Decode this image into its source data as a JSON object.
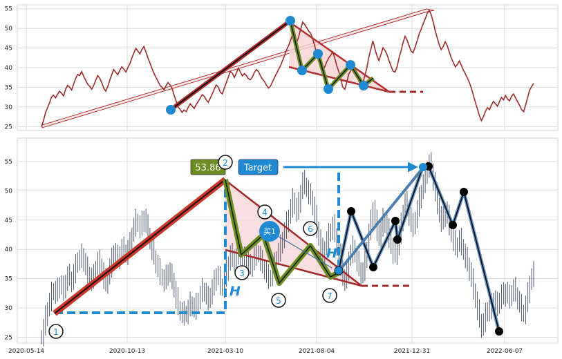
{
  "chart_data": [
    {
      "type": "line",
      "panel": "top",
      "title": "",
      "ylim": [
        24,
        56
      ],
      "yticks": [
        25,
        30,
        35,
        40,
        45,
        50,
        55
      ],
      "grid": true,
      "colors": {
        "price": "#9b2a2a",
        "marker": "#1f8ad2",
        "trend": "#b03030",
        "wave": "#6b8e23",
        "arrow": "#b03030"
      },
      "series": [
        {
          "values": [
            25.0,
            26.5,
            28.5,
            29.8,
            31.0,
            32.5,
            33.0,
            32.3,
            33.2,
            34.0,
            33.5,
            32.8,
            34.5,
            35.5,
            35.0,
            34.3,
            35.8,
            37.2,
            38.3,
            38.0,
            39.0,
            37.8,
            36.8,
            35.8,
            35.3,
            34.5,
            35.5,
            36.8,
            38.0,
            37.3,
            36.2,
            34.8,
            34.0,
            35.2,
            36.8,
            38.3,
            39.5,
            38.8,
            38.2,
            39.3,
            40.2,
            39.6,
            38.9,
            40.0,
            41.0,
            42.5,
            43.8,
            44.9,
            44.2,
            43.5,
            44.6,
            45.4,
            44.0,
            42.5,
            41.2,
            39.8,
            38.6,
            37.5,
            36.5,
            35.5,
            35.0,
            34.4,
            35.4,
            36.2,
            35.6,
            34.8,
            33.0,
            31.5,
            30.0,
            29.4,
            28.6,
            29.2,
            28.8,
            29.8,
            30.8,
            30.2,
            29.6,
            30.6,
            31.4,
            32.2,
            33.1,
            32.7,
            31.8,
            31.2,
            32.2,
            33.3,
            34.5,
            35.6,
            35.1,
            33.8,
            33.3,
            34.8,
            36.2,
            37.6,
            39.1,
            38.6,
            37.5,
            38.6,
            39.9,
            38.9,
            37.9,
            38.5,
            38.0,
            37.2,
            36.9,
            37.6,
            38.8,
            39.5,
            39.0,
            37.9,
            37.1,
            36.5,
            35.5,
            34.8,
            35.3,
            36.4,
            37.5,
            38.5,
            39.5,
            40.5,
            41.8,
            43.0,
            44.5,
            45.6,
            47.0,
            48.5,
            47.2,
            46.3,
            47.8,
            49.8,
            51.6,
            51.0,
            50.2,
            49.3,
            48.8,
            47.4,
            45.6,
            43.5,
            41.8,
            40.0,
            39.2,
            40.2,
            41.5,
            42.5,
            43.2,
            44.0,
            42.4,
            40.5,
            39.0,
            37.0,
            35.0,
            34.5,
            36.3,
            38.4,
            39.2,
            40.4,
            39.0,
            37.8,
            36.6,
            35.4,
            36.2,
            38.0,
            40.0,
            42.8,
            44.8,
            46.8,
            44.8,
            43.0,
            41.8,
            43.4,
            45.1,
            44.4,
            43.3,
            41.8,
            40.4,
            39.1,
            38.9,
            40.2,
            42.5,
            44.3,
            46.4,
            48.0,
            47.0,
            45.6,
            44.2,
            43.8,
            45.2,
            46.8,
            48.6,
            49.8,
            51.2,
            52.4,
            53.8,
            54.6,
            53.5,
            51.6,
            49.4,
            47.6,
            45.8,
            44.6,
            45.4,
            46.6,
            45.6,
            44.0,
            42.5,
            41.3,
            40.2,
            40.8,
            41.7,
            40.6,
            39.4,
            38.4,
            37.4,
            36.2,
            34.8,
            33.0,
            31.2,
            29.5,
            27.8,
            26.5,
            27.5,
            28.9,
            29.8,
            29.3,
            30.5,
            31.4,
            30.8,
            30.2,
            31.4,
            32.4,
            31.8,
            32.9,
            32.0,
            31.5,
            32.7,
            33.3,
            32.3,
            31.3,
            30.4,
            29.3,
            28.8,
            30.5,
            32.4,
            34.3,
            35.2,
            36.0
          ]
        }
      ]
    },
    {
      "type": "line",
      "panel": "bottom",
      "title": "",
      "ylim": [
        24,
        59
      ],
      "yticks": [
        25,
        30,
        35,
        40,
        45,
        50,
        55
      ],
      "xticks": [
        "2020-05-14",
        "2020-10-13",
        "2021-03-10",
        "2021-08-04",
        "2021-12-31",
        "2022-06-07"
      ],
      "grid": true,
      "colors": {
        "bars": "#3a4860",
        "zigzag": "#0a1426",
        "zigzag_glow": "#6b9ac0",
        "wave": "#6b8e23",
        "dashed": "#1f8ad2",
        "label_bg": "#6b8e23",
        "target_bg": "#1f8ad2"
      },
      "annotations": {
        "price_label": "53.86",
        "target_label": "Target",
        "buy_label": "买1",
        "h_label": "H",
        "wave_numbers": [
          "1",
          "2",
          "3",
          "4",
          "5",
          "6",
          "7"
        ]
      },
      "series": [
        {
          "values": [
            25.0,
            26.5,
            28.5,
            29.8,
            31.0,
            32.5,
            33.0,
            32.3,
            33.2,
            34.0,
            33.5,
            32.8,
            34.5,
            35.5,
            35.0,
            34.3,
            35.8,
            37.2,
            38.3,
            38.0,
            39.0,
            37.8,
            36.8,
            35.8,
            35.3,
            34.5,
            35.5,
            36.8,
            38.0,
            37.3,
            36.2,
            34.8,
            34.0,
            35.2,
            36.8,
            38.3,
            39.5,
            38.8,
            38.2,
            39.3,
            40.2,
            39.6,
            38.9,
            40.0,
            41.0,
            42.5,
            43.8,
            44.9,
            44.2,
            43.5,
            44.6,
            45.4,
            44.0,
            42.5,
            41.2,
            39.8,
            38.6,
            37.5,
            36.5,
            35.5,
            35.0,
            34.4,
            35.4,
            36.2,
            35.6,
            34.8,
            33.0,
            31.5,
            30.0,
            29.4,
            28.6,
            29.2,
            28.8,
            29.8,
            30.8,
            30.2,
            29.6,
            30.6,
            31.4,
            32.2,
            33.1,
            32.7,
            31.8,
            31.2,
            32.2,
            33.3,
            34.5,
            35.6,
            35.1,
            33.8,
            33.3,
            34.8,
            36.2,
            37.6,
            39.1,
            38.6,
            37.5,
            38.6,
            39.9,
            38.9,
            37.9,
            38.5,
            38.0,
            37.2,
            36.9,
            37.6,
            38.8,
            39.5,
            39.0,
            37.9,
            37.1,
            36.5,
            35.5,
            34.8,
            35.3,
            36.4,
            37.5,
            38.5,
            39.5,
            40.5,
            41.8,
            43.0,
            44.5,
            45.6,
            47.0,
            48.5,
            47.2,
            46.3,
            47.8,
            49.8,
            51.6,
            51.0,
            50.2,
            49.3,
            48.8,
            47.4,
            45.6,
            43.5,
            41.8,
            40.0,
            39.2,
            40.2,
            41.5,
            42.5,
            43.2,
            44.0,
            42.4,
            40.5,
            39.0,
            37.0,
            35.0,
            34.5,
            36.3,
            38.4,
            39.2,
            40.4,
            39.0,
            37.8,
            36.6,
            35.4,
            36.2,
            38.0,
            40.0,
            42.8,
            44.8,
            46.8,
            44.8,
            43.0,
            41.8,
            43.4,
            45.1,
            44.4,
            43.3,
            41.8,
            40.4,
            39.1,
            38.9,
            40.2,
            42.5,
            44.3,
            46.4,
            48.0,
            47.0,
            45.6,
            44.2,
            43.8,
            45.2,
            46.8,
            48.6,
            49.8,
            51.2,
            52.4,
            53.8,
            54.6,
            53.5,
            51.6,
            49.4,
            47.6,
            45.8,
            44.6,
            45.4,
            46.6,
            45.6,
            44.0,
            42.5,
            41.3,
            40.2,
            40.8,
            41.7,
            40.6,
            39.4,
            38.4,
            37.4,
            36.2,
            34.8,
            33.0,
            31.2,
            29.5,
            27.8,
            26.5,
            27.5,
            28.9,
            29.8,
            29.3,
            30.5,
            31.4,
            30.8,
            30.2,
            31.4,
            32.4,
            31.8,
            32.9,
            32.0,
            31.5,
            32.7,
            33.3,
            32.3,
            31.3,
            30.4,
            29.3,
            28.8,
            30.5,
            32.4,
            34.3,
            35.2,
            36.0
          ]
        }
      ]
    }
  ]
}
